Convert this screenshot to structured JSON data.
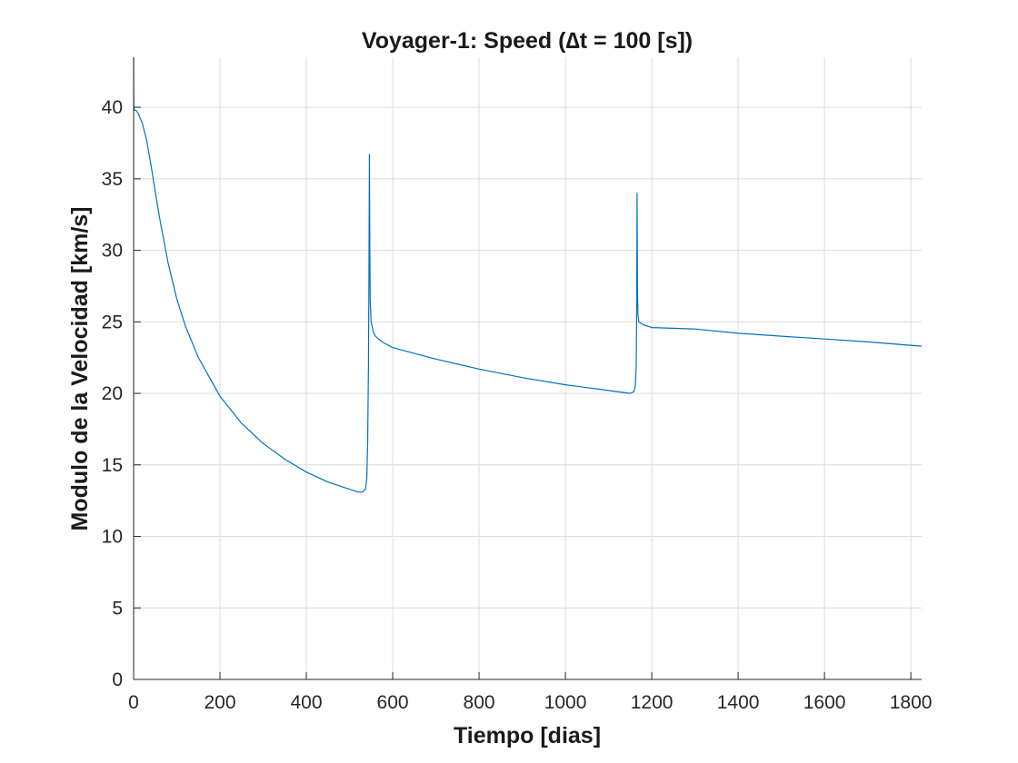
{
  "chart_data": {
    "type": "line",
    "title": "Voyager-1: Speed (∆t = 100 [s])",
    "xlabel": "Tiempo [dias]",
    "ylabel": "Modulo de la Velocidad [km/s]",
    "xlim": [
      0,
      1825
    ],
    "ylim": [
      0,
      43.5
    ],
    "xticks": [
      0,
      200,
      400,
      600,
      800,
      1000,
      1200,
      1400,
      1600,
      1800
    ],
    "yticks": [
      0,
      5,
      10,
      15,
      20,
      25,
      30,
      35,
      40
    ],
    "grid": true,
    "legend": "none",
    "series": [
      {
        "color": "#0072BD",
        "x": [
          0,
          0.5,
          1,
          2,
          5,
          10,
          20,
          30,
          40,
          50,
          60,
          80,
          100,
          120,
          150,
          200,
          250,
          300,
          350,
          400,
          450,
          500,
          520,
          530,
          537,
          540,
          542,
          544,
          545,
          546,
          547,
          548,
          550,
          555,
          560,
          575,
          600,
          700,
          800,
          900,
          1000,
          1100,
          1150,
          1158,
          1162,
          1164,
          1165,
          1166,
          1167,
          1168,
          1170,
          1180,
          1200,
          1300,
          1400,
          1500,
          1600,
          1700,
          1825
        ],
        "y": [
          43.5,
          40.2,
          39.9,
          39.8,
          39.8,
          39.6,
          38.9,
          37.7,
          36.0,
          34.1,
          32.3,
          29.1,
          26.6,
          24.7,
          22.5,
          19.8,
          17.9,
          16.5,
          15.4,
          14.5,
          13.8,
          13.3,
          13.1,
          13.1,
          13.3,
          14.0,
          16.5,
          22.0,
          28.0,
          36.7,
          30.0,
          26.5,
          25.0,
          24.3,
          24.0,
          23.6,
          23.2,
          22.4,
          21.7,
          21.1,
          20.6,
          20.2,
          20.0,
          20.1,
          20.5,
          22.0,
          26.0,
          34.0,
          27.0,
          25.5,
          25.0,
          24.8,
          24.6,
          24.5,
          24.2,
          24.0,
          23.8,
          23.6,
          23.3
        ]
      }
    ]
  }
}
